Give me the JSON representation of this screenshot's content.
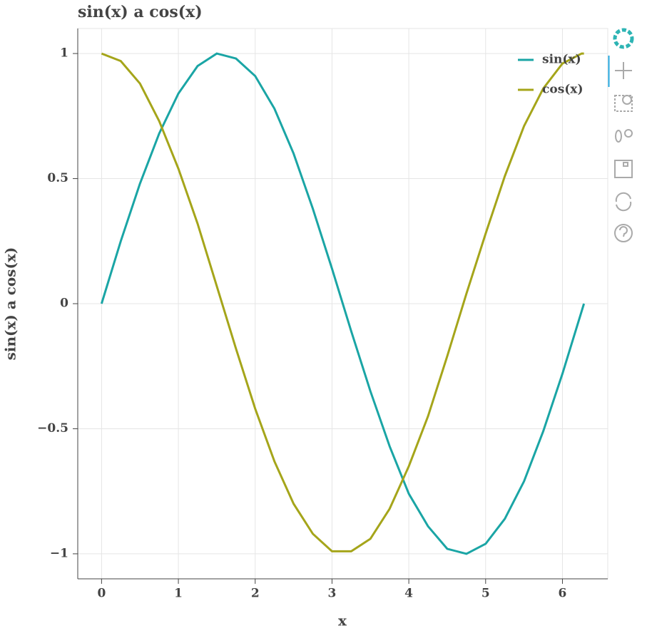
{
  "chart_data": {
    "type": "line",
    "title": "sin(x) a cos(x)",
    "x_label": "x",
    "y_label": "sin(x) a cos(x)",
    "x": [
      0,
      0.25,
      0.5,
      0.75,
      1,
      1.25,
      1.5,
      1.75,
      2,
      2.25,
      2.5,
      2.75,
      3,
      3.25,
      3.5,
      3.75,
      4,
      4.25,
      4.5,
      4.75,
      5,
      5.25,
      5.5,
      5.75,
      6,
      6.25,
      6.28
    ],
    "series": [
      {
        "name": "sin(x)",
        "color": "#1aa5a5",
        "values": [
          0,
          0.25,
          0.48,
          0.68,
          0.84,
          0.95,
          1.0,
          0.98,
          0.91,
          0.78,
          0.6,
          0.38,
          0.14,
          -0.11,
          -0.35,
          -0.57,
          -0.76,
          -0.89,
          -0.98,
          -1.0,
          -0.96,
          -0.86,
          -0.71,
          -0.51,
          -0.28,
          -0.03,
          0
        ]
      },
      {
        "name": "cos(x)",
        "color": "#a5a51a",
        "values": [
          1,
          0.97,
          0.88,
          0.73,
          0.54,
          0.32,
          0.07,
          -0.18,
          -0.42,
          -0.63,
          -0.8,
          -0.92,
          -0.99,
          -0.99,
          -0.94,
          -0.82,
          -0.65,
          -0.45,
          -0.21,
          0.04,
          0.28,
          0.51,
          0.71,
          0.86,
          0.96,
          1.0,
          1
        ]
      }
    ],
    "xlim": [
      -0.31,
      6.59
    ],
    "ylim": [
      -1.1,
      1.1
    ],
    "xticks": [
      0,
      1,
      2,
      3,
      4,
      5,
      6
    ],
    "yticks": [
      {
        "value": -1,
        "label": "−1"
      },
      {
        "value": -0.5,
        "label": "−0.5"
      },
      0,
      0.5,
      1
    ],
    "grid": true,
    "legend": "top-right"
  }
}
